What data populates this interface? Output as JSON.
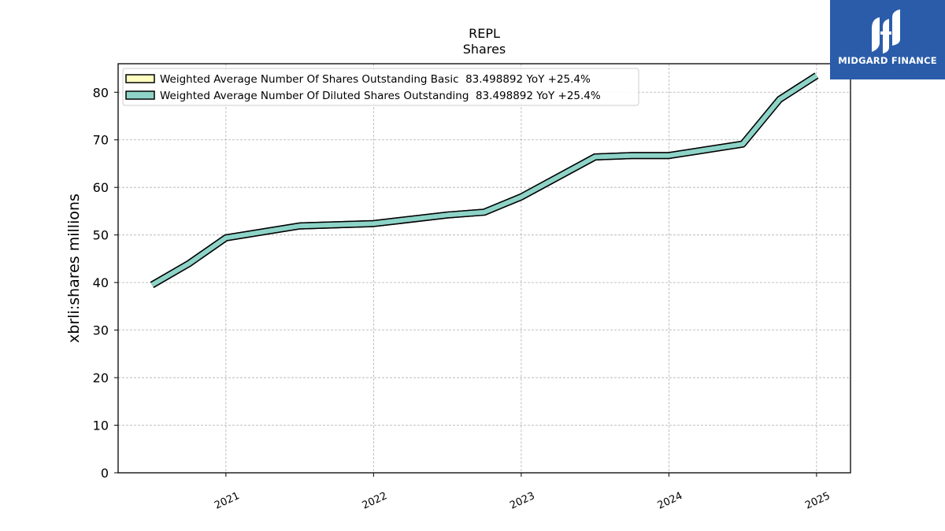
{
  "brand": {
    "name": "MIDGARD FINANCE",
    "bg_color": "#2a5caa",
    "icon": "midgard-logo-icon"
  },
  "chart_data": {
    "type": "line",
    "title": "REPL",
    "subtitle": "Shares",
    "ylabel": "xbrli:shares millions",
    "xlabel": "",
    "ylim": [
      0,
      86
    ],
    "xlim": [
      2020.27,
      2025.23
    ],
    "yticks": [
      0,
      10,
      20,
      30,
      40,
      50,
      60,
      70,
      80
    ],
    "xticks": [
      {
        "value": 2021,
        "label": "2021"
      },
      {
        "value": 2022,
        "label": "2022"
      },
      {
        "value": 2023,
        "label": "2023"
      },
      {
        "value": 2024,
        "label": "2024"
      },
      {
        "value": 2025,
        "label": "2025"
      }
    ],
    "grid": true,
    "legend": "top-left",
    "series": [
      {
        "name": "Weighted Average Number Of Shares Outstanding Basic  83.498892 YoY +25.4%",
        "color": "#ffffc0",
        "x": [
          2020.5,
          2020.75,
          2021.0,
          2021.5,
          2022.0,
          2022.5,
          2022.75,
          2023.0,
          2023.5,
          2023.75,
          2024.0,
          2024.5,
          2024.75,
          2025.0
        ],
        "values": [
          39.5,
          44.0,
          49.4,
          51.9,
          52.4,
          54.2,
          54.8,
          58.0,
          66.4,
          66.7,
          66.7,
          69.1,
          78.5,
          83.5
        ]
      },
      {
        "name": "Weighted Average Number Of Diluted Shares Outstanding  83.498892 YoY +25.4%",
        "color": "#8dd3c7",
        "x": [
          2020.5,
          2020.75,
          2021.0,
          2021.5,
          2022.0,
          2022.5,
          2022.75,
          2023.0,
          2023.5,
          2023.75,
          2024.0,
          2024.5,
          2024.75,
          2025.0
        ],
        "values": [
          39.5,
          44.0,
          49.4,
          51.9,
          52.4,
          54.2,
          54.8,
          58.0,
          66.4,
          66.7,
          66.7,
          69.1,
          78.5,
          83.5
        ]
      }
    ]
  }
}
